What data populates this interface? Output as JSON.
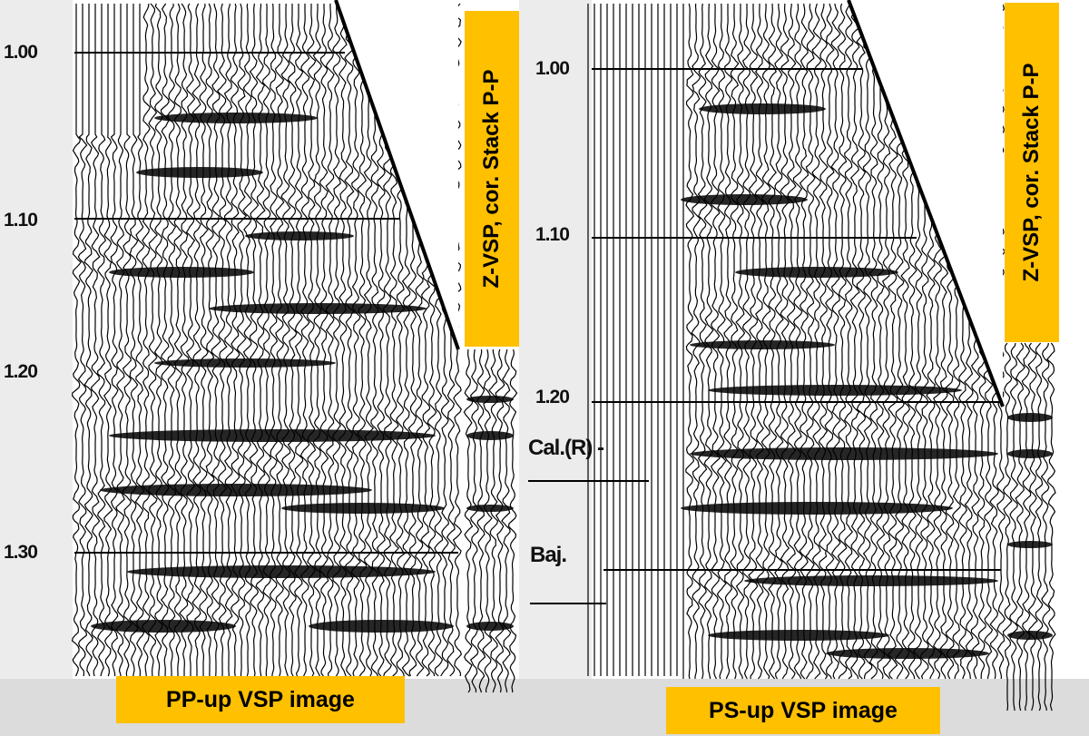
{
  "left_panel": {
    "time_ticks": [
      "1.00",
      "1.10",
      "1.20",
      "1.30"
    ],
    "caption": "PP-up VSP image",
    "side_label": "Z-VSP, cor. Stack P-P"
  },
  "right_panel": {
    "time_ticks": [
      "1.00",
      "1.10",
      "1.20"
    ],
    "caption": "PS-up VSP image",
    "side_label": "Z-VSP, cor. Stack P-P",
    "formations": [
      "Cal.(R) -",
      "Baj."
    ]
  },
  "colors": {
    "highlight": "#ffc000",
    "trace": "#000000",
    "background": "#ffffff"
  }
}
